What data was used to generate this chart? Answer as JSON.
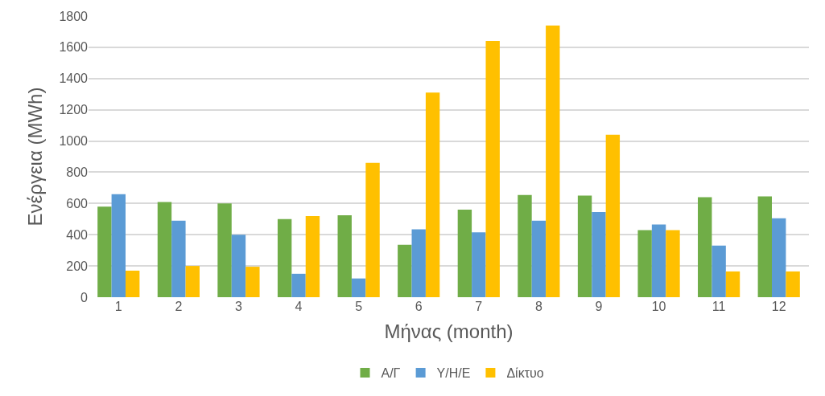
{
  "chart_data": {
    "type": "bar",
    "xlabel": "Μήνας (month)",
    "ylabel": "Ενέργεια (MWh)",
    "categories": [
      "1",
      "2",
      "3",
      "4",
      "5",
      "6",
      "7",
      "8",
      "9",
      "10",
      "11",
      "12"
    ],
    "series": [
      {
        "name": "Α/Γ",
        "color": "#70ad47",
        "values": [
          580,
          610,
          600,
          500,
          525,
          335,
          560,
          655,
          650,
          430,
          640,
          645
        ]
      },
      {
        "name": "Υ/Η/Ε",
        "color": "#5b9bd5",
        "values": [
          660,
          490,
          400,
          150,
          120,
          435,
          415,
          490,
          545,
          465,
          330,
          505
        ]
      },
      {
        "name": "Δίκτυο",
        "color": "#ffc000",
        "values": [
          170,
          200,
          195,
          520,
          860,
          1310,
          1640,
          1740,
          1040,
          430,
          165,
          165
        ]
      }
    ],
    "ylim": [
      0,
      1800
    ],
    "yticks": [
      0,
      200,
      400,
      600,
      800,
      1000,
      1200,
      1400,
      1600,
      1800
    ],
    "grid": "y",
    "legend": "bottom"
  }
}
